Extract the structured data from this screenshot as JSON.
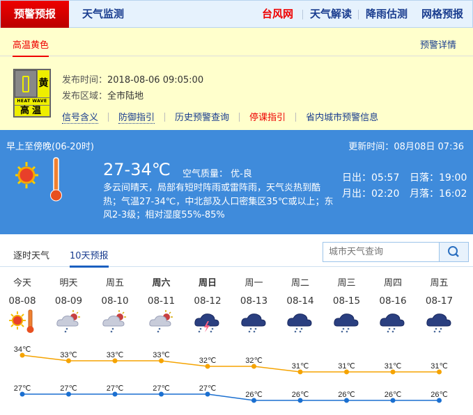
{
  "nav": {
    "active": "预警预报",
    "items": [
      "天气监测"
    ],
    "right": [
      {
        "label": "台风网",
        "color": "#ee0000"
      },
      {
        "label": "天气解读"
      },
      {
        "label": "降雨估测"
      },
      {
        "label": "网格预报"
      }
    ]
  },
  "warning": {
    "tab": "高温黄色",
    "detail_link": "预警详情",
    "badge": {
      "color_char": "黄",
      "en": "HEAT WAVE",
      "cn": "高温"
    },
    "publish_time_label": "发布时间：",
    "publish_time": "2018-08-06 09:05:00",
    "area_label": "发布区域：",
    "area": "全市陆地",
    "links": [
      "信号含义",
      "防御指引",
      "历史预警查询",
      "停课指引",
      "省内城市预警信息"
    ]
  },
  "today": {
    "period": "早上至傍晚(06-20时)",
    "update_label": "更新时间：",
    "update_time": "08月08日 07:36",
    "temp": "27-34℃",
    "aqi_label": "空气质量：",
    "aqi": "优-良",
    "desc": "多云间晴天，局部有短时阵雨或雷阵雨，天气炎热到酷热；气温27-34℃，中北部及人口密集区35℃或以上；东风2-3级；相对湿度55%-85%",
    "sunrise_label": "日出：",
    "sunrise": "05:57",
    "sunset_label": "日落：",
    "sunset": "19:00",
    "moonrise_label": "月出：",
    "moonrise": "02:20",
    "moonset_label": "月落：",
    "moonset": "16:02",
    "icon": "sunny-hot-icon"
  },
  "forecast_tabs": [
    "逐时天气",
    "10天预报"
  ],
  "search": {
    "placeholder": "城市天气查询"
  },
  "days": [
    {
      "day": "今天",
      "date": "08-08",
      "icon": "sunny-hot",
      "high": 34,
      "low": 27
    },
    {
      "day": "明天",
      "date": "08-09",
      "icon": "partly-cloudy-shower",
      "high": 33,
      "low": 27
    },
    {
      "day": "周五",
      "date": "08-10",
      "icon": "partly-cloudy-shower",
      "high": 33,
      "low": 27
    },
    {
      "day": "周六",
      "date": "08-11",
      "icon": "partly-cloudy-shower",
      "high": 33,
      "low": 27,
      "weekend": true
    },
    {
      "day": "周日",
      "date": "08-12",
      "icon": "thunderstorm",
      "high": 32,
      "low": 27,
      "weekend": true
    },
    {
      "day": "周一",
      "date": "08-13",
      "icon": "rain",
      "high": 32,
      "low": 26
    },
    {
      "day": "周二",
      "date": "08-14",
      "icon": "rain",
      "high": 31,
      "low": 26
    },
    {
      "day": "周三",
      "date": "08-15",
      "icon": "rain",
      "high": 31,
      "low": 26
    },
    {
      "day": "周四",
      "date": "08-16",
      "icon": "rain",
      "high": 31,
      "low": 26
    },
    {
      "day": "周五",
      "date": "08-17",
      "icon": "rain",
      "high": 31,
      "low": 26
    }
  ],
  "unit": "℃",
  "colors": {
    "high": "#f5a300",
    "low": "#1a6fd0",
    "warn_bg": "#ffffcc",
    "today_bg": "#3f8bdb"
  }
}
